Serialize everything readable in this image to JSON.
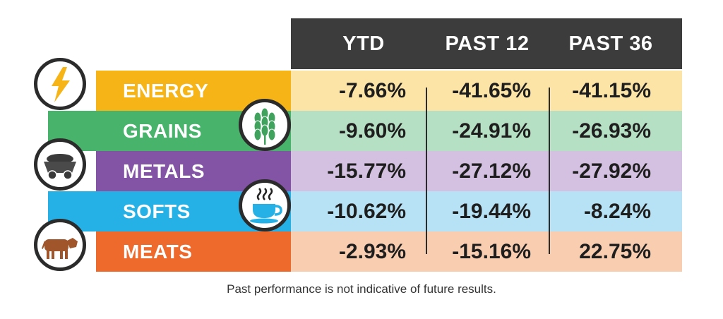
{
  "chart_data": {
    "type": "table",
    "columns": [
      "YTD",
      "PAST 12",
      "PAST 36"
    ],
    "rows": [
      {
        "label": "ENERGY",
        "icon": "lightning-icon",
        "color": "#f6b417",
        "tint": "#fce3a6",
        "values": [
          "-7.66%",
          "-41.65%",
          "-41.15%"
        ]
      },
      {
        "label": "GRAINS",
        "icon": "wheat-icon",
        "color": "#48b36a",
        "tint": "#b6e0c4",
        "values": [
          "-9.60%",
          "-24.91%",
          "-26.93%"
        ]
      },
      {
        "label": "METALS",
        "icon": "mine-cart-icon",
        "color": "#8353a5",
        "tint": "#d4c0e0",
        "values": [
          "-15.77%",
          "-27.12%",
          "-27.92%"
        ]
      },
      {
        "label": "SOFTS",
        "icon": "coffee-cup-icon",
        "color": "#25b0e6",
        "tint": "#b7e2f5",
        "values": [
          "-10.62%",
          "-19.44%",
          "-8.24%"
        ]
      },
      {
        "label": "MEATS",
        "icon": "cow-icon",
        "color": "#ee6a2c",
        "tint": "#f9cdb0",
        "values": [
          "-2.93%",
          "-15.16%",
          "22.75%"
        ]
      }
    ]
  },
  "colors": {
    "header_bg": "#3c3c3c",
    "header_text": "#ffffff",
    "divider": "#2b2b2b"
  },
  "footnote": "Past performance is not indicative of future results."
}
